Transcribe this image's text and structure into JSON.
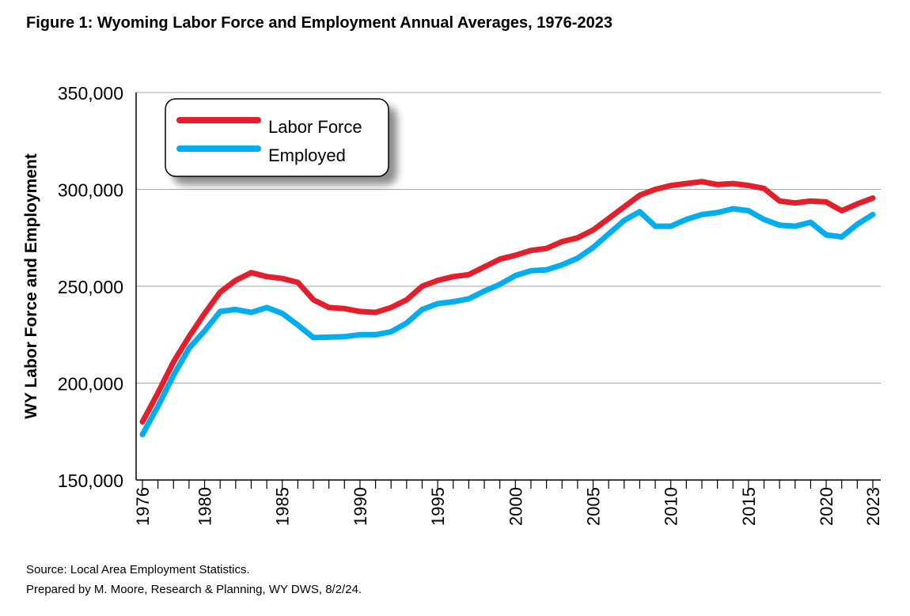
{
  "title": "Figure 1: Wyoming Labor Force and Employment Annual Averages, 1976-2023",
  "footer": {
    "source": "Source: Local Area Employment Statistics.",
    "prepared": "Prepared by M. Moore, Research & Planning, WY DWS, 8/2/24."
  },
  "chart_data": {
    "type": "line",
    "ylabel": "WY Labor Force and Employment",
    "xlabel": "",
    "ylim": [
      150000,
      350000
    ],
    "yticks": [
      150000,
      200000,
      250000,
      300000,
      350000
    ],
    "ytick_labels": [
      "150,000",
      "200,000",
      "250,000",
      "300,000",
      "350,000"
    ],
    "xlim": [
      1976,
      2023
    ],
    "xtick_labels": [
      "1976",
      "1980",
      "1985",
      "1990",
      "1995",
      "2000",
      "2005",
      "2010",
      "2015",
      "2020",
      "2023"
    ],
    "grid": "horizontal",
    "legend_position": "top-left",
    "x": [
      1976,
      1977,
      1978,
      1979,
      1980,
      1981,
      1982,
      1983,
      1984,
      1985,
      1986,
      1987,
      1988,
      1989,
      1990,
      1991,
      1992,
      1993,
      1994,
      1995,
      1996,
      1997,
      1998,
      1999,
      2000,
      2001,
      2002,
      2003,
      2004,
      2005,
      2006,
      2007,
      2008,
      2009,
      2010,
      2011,
      2012,
      2013,
      2014,
      2015,
      2016,
      2017,
      2018,
      2019,
      2020,
      2021,
      2022,
      2023
    ],
    "series": [
      {
        "name": "Labor Force",
        "color": "#e41e2b",
        "values": [
          180000,
          195000,
          211000,
          224000,
          236000,
          247000,
          253000,
          257000,
          255000,
          254000,
          252000,
          243000,
          239000,
          238500,
          237000,
          236500,
          239000,
          243000,
          250000,
          253000,
          255000,
          256000,
          260000,
          264000,
          266000,
          268500,
          269500,
          273000,
          275000,
          279000,
          285000,
          291000,
          297000,
          300000,
          302000,
          303000,
          304000,
          302500,
          303000,
          302000,
          300500,
          294000,
          293000,
          294000,
          293500,
          289000,
          292500,
          295500
        ]
      },
      {
        "name": "Employed",
        "color": "#00aeef",
        "values": [
          173500,
          188000,
          204000,
          218000,
          227000,
          237000,
          238000,
          236500,
          239000,
          236000,
          230000,
          223500,
          223700,
          224000,
          225000,
          225000,
          226500,
          231000,
          238000,
          241000,
          242000,
          243500,
          247500,
          251000,
          255500,
          258000,
          258500,
          261000,
          264500,
          270000,
          277000,
          284000,
          288500,
          281000,
          281000,
          284500,
          287000,
          288000,
          290000,
          289000,
          284500,
          281500,
          281000,
          283000,
          276500,
          275500,
          282000,
          287000
        ]
      }
    ]
  }
}
